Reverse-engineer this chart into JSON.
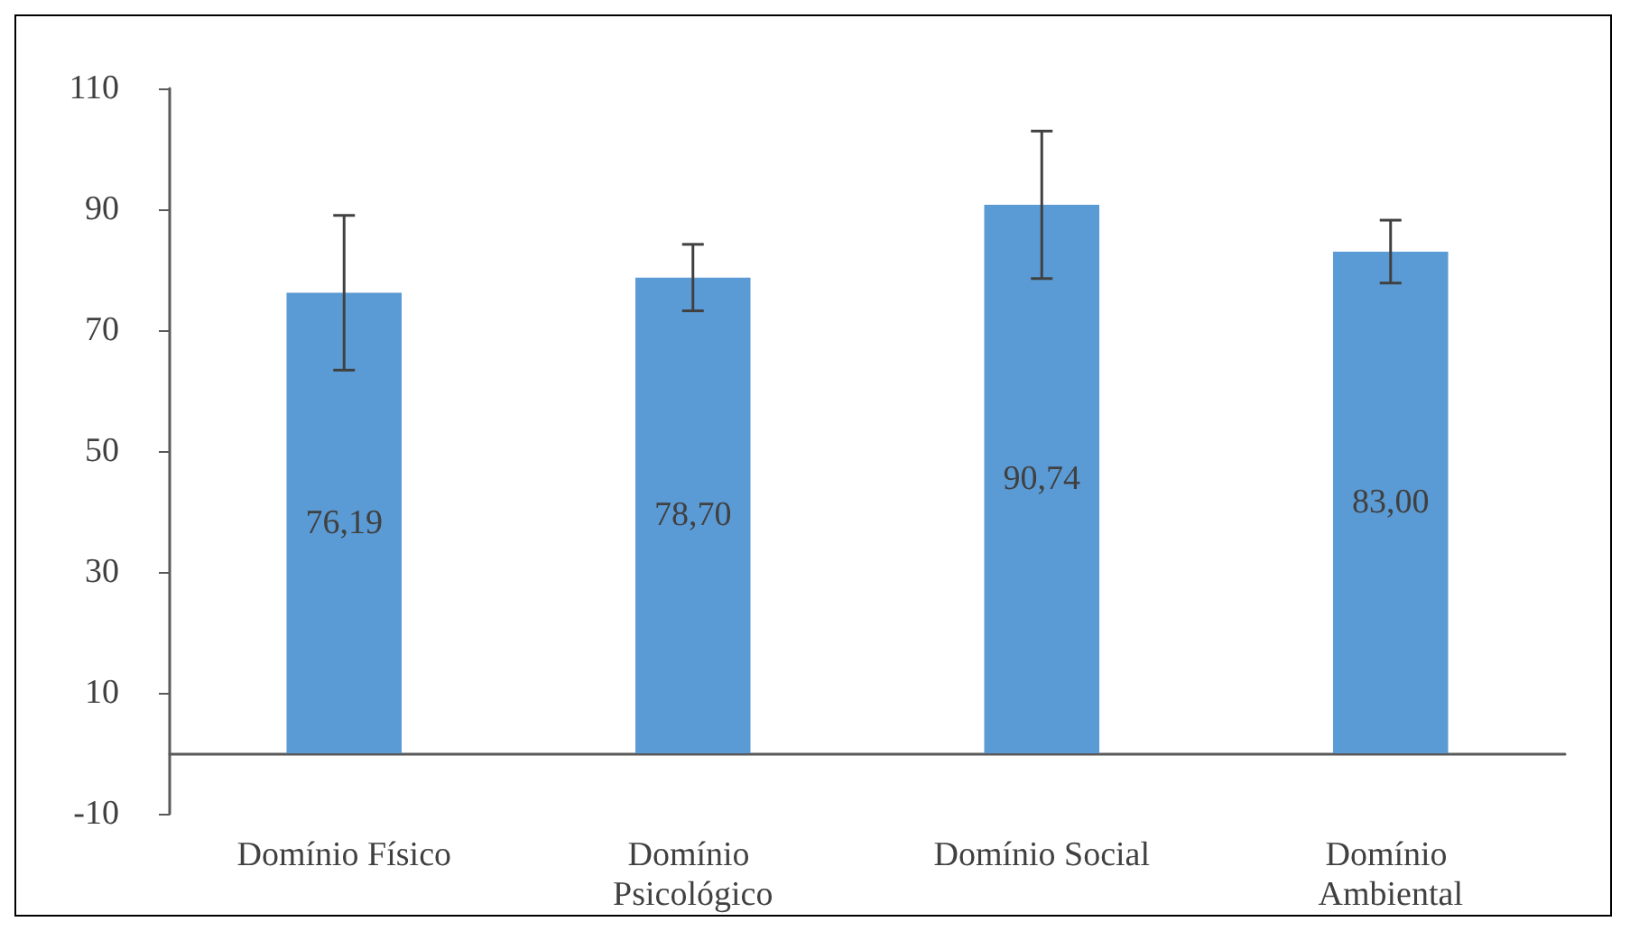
{
  "chart_data": {
    "type": "bar",
    "categories": [
      "Domínio Físico",
      "Domínio Psicológico",
      "Domínio Social",
      "Domínio Ambiental"
    ],
    "values": [
      76.19,
      78.7,
      90.74,
      83.0
    ],
    "value_labels": [
      "76,19",
      "78,70",
      "90,74",
      "83,00"
    ],
    "errors": [
      12.8,
      5.5,
      12.2,
      5.2
    ],
    "color": "#5b9bd5",
    "ylim": [
      -10,
      110
    ],
    "yticks": [
      -10,
      10,
      30,
      50,
      70,
      90,
      110
    ],
    "grid": false
  }
}
